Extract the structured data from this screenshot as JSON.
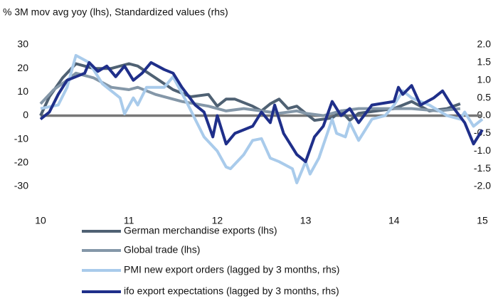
{
  "chart_data": {
    "type": "line",
    "title": "% 3M mov avg yoy (lhs), Standardized values (rhs)",
    "xlim": [
      10,
      15
    ],
    "xticks": [
      10,
      11,
      12,
      13,
      14,
      15
    ],
    "ylim": [
      -30,
      30
    ],
    "yticks": [
      -30,
      -20,
      -10,
      0,
      10,
      20,
      30
    ],
    "y2lim": [
      -2,
      2
    ],
    "y2ticks": [
      {
        "value": -2,
        "label": "-2.0"
      },
      {
        "value": -1.5,
        "label": "-1.5"
      },
      {
        "value": -1,
        "label": "-1.0"
      },
      {
        "value": -0.5,
        "label": "-0.5"
      },
      {
        "value": 0,
        "label": "0.0"
      },
      {
        "value": 0.5,
        "label": "0.5"
      },
      {
        "value": 1,
        "label": "1.0"
      },
      {
        "value": 1.5,
        "label": "1.5"
      },
      {
        "value": 2,
        "label": "2.0"
      }
    ],
    "series": [
      {
        "name": "German merchandise exports (lhs)",
        "color": "#4f6173",
        "x": [
          10,
          10.1,
          10.25,
          10.4,
          10.6,
          10.8,
          11,
          11.1,
          11.3,
          11.5,
          11.7,
          11.9,
          12,
          12.1,
          12.2,
          12.4,
          12.5,
          12.6,
          12.7,
          12.8,
          12.9,
          13,
          13.1,
          13.3,
          13.4,
          13.5,
          13.6,
          14,
          14.2,
          14.4,
          14.6,
          14.75
        ],
        "values": [
          0,
          8,
          16,
          22,
          20,
          20,
          22,
          21,
          16,
          11,
          8,
          9,
          4,
          7,
          7,
          4,
          2,
          5,
          7,
          3,
          4,
          1,
          -2,
          -1,
          2,
          -2,
          1,
          3,
          6,
          2,
          3,
          5
        ]
      },
      {
        "name": "Global trade (lhs)",
        "color": "#8497a8",
        "x": [
          10,
          10.15,
          10.3,
          10.4,
          10.6,
          10.8,
          11,
          11.1,
          11.3,
          11.6,
          11.9,
          12.1,
          12.3,
          12.5,
          12.7,
          12.9,
          13,
          13.2,
          13.4,
          13.6,
          14,
          14.2,
          14.5,
          14.75
        ],
        "values": [
          5,
          11,
          15,
          18,
          16,
          12,
          11,
          12,
          9,
          6,
          4,
          2,
          3,
          2,
          1,
          2,
          1,
          0,
          2,
          3,
          3,
          3,
          2,
          3
        ]
      },
      {
        "name": "PMI new export orders (lagged by 3 months, rhs)",
        "color": "#a9cbeb",
        "axis": "y2",
        "x": [
          10,
          10.2,
          10.3,
          10.4,
          10.55,
          10.7,
          10.9,
          10.95,
          11.05,
          11.1,
          11.2,
          11.4,
          11.5,
          11.65,
          11.85,
          12,
          12.1,
          12.15,
          12.3,
          12.4,
          12.5,
          12.6,
          12.7,
          12.85,
          12.9,
          13,
          13.05,
          13.15,
          13.3,
          13.35,
          13.45,
          13.5,
          13.6,
          13.75,
          13.9,
          14,
          14.1,
          14.2,
          14.4,
          14.6,
          14.75,
          14.8,
          14.9,
          15
        ],
        "values": [
          0.2,
          0.3,
          0.8,
          1.7,
          1.5,
          0.9,
          0.5,
          0.05,
          0.5,
          0.3,
          0.8,
          0.8,
          1.1,
          0.4,
          -0.6,
          -1,
          -1.45,
          -1.5,
          -1.1,
          -0.7,
          -0.65,
          -1.2,
          -1.3,
          -1.5,
          -1.9,
          -1.3,
          -1.65,
          -1.2,
          -0.1,
          -0.5,
          -0.6,
          -0.2,
          -0.7,
          -0.1,
          0,
          0.3,
          0.7,
          0.5,
          0.3,
          0,
          -0.1,
          0.1,
          -0.3,
          -0.1
        ]
      },
      {
        "name": "ifo export expectations (lagged by 3 months, rhs)",
        "color": "#1f2f8a",
        "axis": "y2",
        "x": [
          10,
          10.1,
          10.2,
          10.3,
          10.4,
          10.5,
          10.55,
          10.65,
          10.75,
          10.85,
          10.95,
          11.05,
          11.15,
          11.25,
          11.4,
          11.5,
          11.6,
          11.75,
          11.85,
          11.95,
          12,
          12.1,
          12.2,
          12.3,
          12.4,
          12.5,
          12.6,
          12.65,
          12.75,
          12.9,
          13,
          13.1,
          13.2,
          13.3,
          13.4,
          13.5,
          13.6,
          13.75,
          14,
          14.05,
          14.1,
          14.2,
          14.3,
          14.45,
          14.55,
          14.65,
          14.8,
          14.9,
          15
        ],
        "values": [
          -0.1,
          0.1,
          0.6,
          1,
          1.1,
          1.2,
          1.5,
          1.25,
          1.4,
          1.1,
          1.4,
          1,
          1.2,
          1.5,
          1.3,
          1.2,
          0.8,
          0.3,
          0.1,
          -0.6,
          0,
          -0.8,
          -0.5,
          -0.4,
          -0.3,
          0.1,
          -0.2,
          0.3,
          -0.5,
          -1.1,
          -1.3,
          -0.6,
          -0.3,
          0.4,
          0,
          0.2,
          -0.2,
          0.3,
          0.4,
          0.8,
          0.6,
          0.85,
          0.3,
          0.5,
          0.7,
          0.3,
          -0.2,
          -0.8,
          -0.4
        ]
      }
    ]
  }
}
